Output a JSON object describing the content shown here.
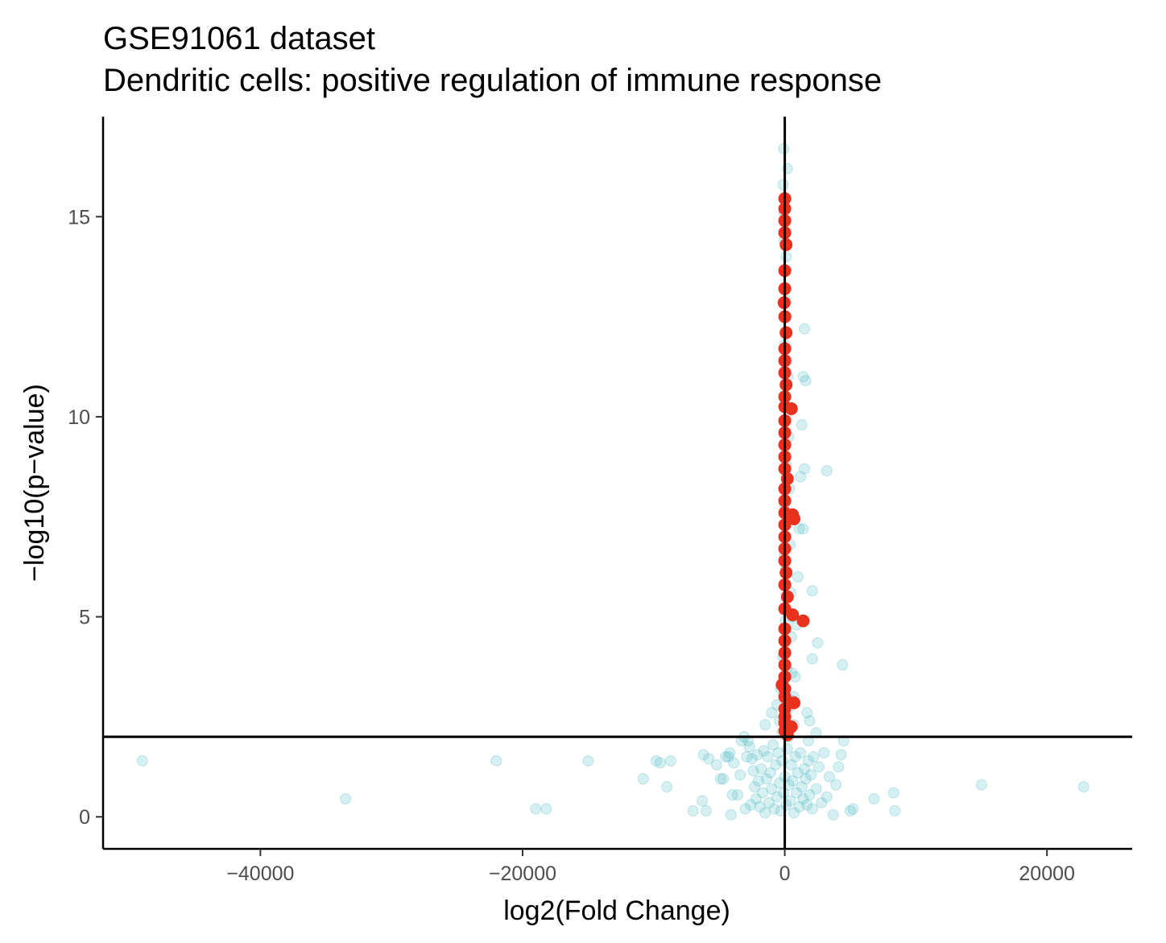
{
  "chart_data": {
    "type": "scatter",
    "title": "GSE91061 dataset",
    "subtitle": "Dendritic cells: positive regulation of immune response",
    "xlabel": "log2(Fold Change)",
    "ylabel": "−log10(p−value)",
    "xlim": [
      -52000,
      26500
    ],
    "ylim": [
      -0.8,
      17.5
    ],
    "x_ticks": [
      -40000,
      -20000,
      0,
      20000
    ],
    "x_tick_labels": [
      "−40000",
      "−20000",
      "0",
      "20000"
    ],
    "y_ticks": [
      0,
      5,
      10,
      15
    ],
    "y_tick_labels": [
      "0",
      "5",
      "10",
      "15"
    ],
    "reference_lines": {
      "vertical_x": 0,
      "horizontal_y": 2
    },
    "grid": false,
    "colors": {
      "background_points": "#5bc0c8",
      "highlight_points": "#e8321e",
      "axis": "#000000"
    },
    "series": [
      {
        "color": "#5bc0c8",
        "opacity": 0.25,
        "points": [
          [
            -49000,
            1.4
          ],
          [
            -33500,
            0.45
          ],
          [
            -22000,
            1.4
          ],
          [
            -19000,
            0.2
          ],
          [
            -18200,
            0.2
          ],
          [
            -15000,
            1.4
          ],
          [
            -10800,
            0.95
          ],
          [
            -9800,
            1.4
          ],
          [
            -9500,
            1.35
          ],
          [
            -9000,
            0.75
          ],
          [
            -8700,
            1.4
          ],
          [
            -7000,
            0.15
          ],
          [
            -6300,
            0.4
          ],
          [
            -6200,
            1.55
          ],
          [
            -6000,
            0.15
          ],
          [
            -5800,
            1.45
          ],
          [
            -5200,
            1.3
          ],
          [
            -4900,
            0.95
          ],
          [
            -4700,
            0.95
          ],
          [
            -4500,
            1.5
          ],
          [
            -4200,
            1.6
          ],
          [
            -4100,
            0.05
          ],
          [
            -4000,
            0.55
          ],
          [
            -3900,
            1.35
          ],
          [
            -3600,
            0.55
          ],
          [
            -3400,
            1.05
          ],
          [
            -3300,
            1.9
          ],
          [
            -3100,
            2.0
          ],
          [
            -3000,
            0.2
          ],
          [
            -2900,
            1.5
          ],
          [
            -2700,
            1.75
          ],
          [
            -2600,
            0.3
          ],
          [
            -2500,
            1.45
          ],
          [
            -2400,
            1.15
          ],
          [
            -2300,
            0.75
          ],
          [
            -2200,
            0.45
          ],
          [
            -2100,
            1.55
          ],
          [
            -2000,
            0.9
          ],
          [
            -1900,
            0.25
          ],
          [
            -1800,
            1.2
          ],
          [
            -1700,
            0.6
          ],
          [
            -1600,
            1.65
          ],
          [
            -1500,
            0.1
          ],
          [
            -1400,
            0.95
          ],
          [
            -1300,
            1.5
          ],
          [
            -1200,
            0.35
          ],
          [
            -1100,
            1.1
          ],
          [
            -1000,
            0.7
          ],
          [
            -900,
            1.8
          ],
          [
            -800,
            0.2
          ],
          [
            -700,
            1.3
          ],
          [
            -600,
            0.5
          ],
          [
            -500,
            1.6
          ],
          [
            -400,
            0.85
          ],
          [
            -300,
            0.15
          ],
          [
            -200,
            1.4
          ],
          [
            -100,
            0.6
          ],
          [
            0,
            1.0
          ],
          [
            100,
            0.3
          ],
          [
            200,
            1.7
          ],
          [
            300,
            0.8
          ],
          [
            400,
            0.4
          ],
          [
            500,
            1.3
          ],
          [
            600,
            0.9
          ],
          [
            700,
            0.1
          ],
          [
            800,
            1.5
          ],
          [
            900,
            0.6
          ],
          [
            1000,
            1.1
          ],
          [
            1100,
            0.25
          ],
          [
            1200,
            1.6
          ],
          [
            1300,
            0.75
          ],
          [
            1400,
            0.45
          ],
          [
            1500,
            1.2
          ],
          [
            1600,
            0.95
          ],
          [
            1700,
            0.3
          ],
          [
            1800,
            1.4
          ],
          [
            1900,
            0.55
          ],
          [
            2000,
            1.05
          ],
          [
            2100,
            0.2
          ],
          [
            2200,
            1.5
          ],
          [
            2400,
            0.7
          ],
          [
            2600,
            1.25
          ],
          [
            2800,
            0.35
          ],
          [
            3000,
            1.6
          ],
          [
            3200,
            0.5
          ],
          [
            3400,
            1.0
          ],
          [
            3700,
            0.05
          ],
          [
            3900,
            0.8
          ],
          [
            4100,
            1.25
          ],
          [
            4300,
            1.55
          ],
          [
            4500,
            1.9
          ],
          [
            5000,
            0.15
          ],
          [
            5200,
            0.2
          ],
          [
            6800,
            0.45
          ],
          [
            8300,
            0.6
          ],
          [
            8400,
            0.15
          ],
          [
            15000,
            0.8
          ],
          [
            22800,
            0.75
          ],
          [
            -4300,
            1.5
          ],
          [
            -2800,
            1.9
          ],
          [
            -1500,
            2.3
          ],
          [
            -1000,
            2.6
          ],
          [
            -600,
            2.8
          ],
          [
            -300,
            3.2
          ],
          [
            -150,
            4.0
          ],
          [
            -80,
            5.2
          ],
          [
            -40,
            6.5
          ],
          [
            -20,
            7.8
          ],
          [
            -10,
            9.0
          ],
          [
            0,
            10.5
          ],
          [
            0,
            11.8
          ],
          [
            0,
            13.2
          ],
          [
            -30,
            14.4
          ],
          [
            -50,
            15.1
          ],
          [
            -120,
            15.8
          ],
          [
            -80,
            16.7
          ],
          [
            200,
            16.2
          ],
          [
            100,
            14.0
          ],
          [
            150,
            12.5
          ],
          [
            250,
            11.0
          ],
          [
            300,
            9.5
          ],
          [
            350,
            8.2
          ],
          [
            400,
            6.8
          ],
          [
            450,
            5.6
          ],
          [
            500,
            4.5
          ],
          [
            550,
            3.6
          ],
          [
            600,
            2.9
          ],
          [
            700,
            2.3
          ],
          [
            800,
            3.5
          ],
          [
            900,
            4.8
          ],
          [
            1000,
            6.0
          ],
          [
            1100,
            7.2
          ],
          [
            1200,
            8.5
          ],
          [
            1300,
            9.8
          ],
          [
            1400,
            11.0
          ],
          [
            1500,
            12.2
          ],
          [
            1600,
            10.9
          ],
          [
            1500,
            8.7
          ],
          [
            3200,
            8.65
          ],
          [
            1400,
            7.2
          ],
          [
            2100,
            5.65
          ],
          [
            2500,
            4.35
          ],
          [
            2100,
            3.95
          ],
          [
            4400,
            3.8
          ],
          [
            1700,
            2.6
          ],
          [
            1900,
            2.4
          ],
          [
            2400,
            2.1
          ],
          [
            1800,
            1.9
          ],
          [
            600,
            5.0
          ],
          [
            700,
            3.0
          ],
          [
            300,
            2.0
          ],
          [
            -200,
            2.1
          ],
          [
            -400,
            2.4
          ],
          [
            100,
            12.9
          ],
          [
            180,
            11.4
          ],
          [
            60,
            9.9
          ],
          [
            120,
            8.8
          ],
          [
            220,
            7.5
          ],
          [
            80,
            6.2
          ],
          [
            40,
            4.9
          ],
          [
            160,
            3.7
          ],
          [
            260,
            2.7
          ],
          [
            330,
            2.2
          ]
        ]
      },
      {
        "color": "#e8321e",
        "opacity": 1,
        "points": [
          [
            0,
            15.45
          ],
          [
            0,
            15.2
          ],
          [
            0,
            14.9
          ],
          [
            0,
            14.6
          ],
          [
            100,
            14.3
          ],
          [
            0,
            13.65
          ],
          [
            0,
            13.2
          ],
          [
            -50,
            12.85
          ],
          [
            0,
            12.5
          ],
          [
            100,
            12.1
          ],
          [
            0,
            11.7
          ],
          [
            0,
            11.4
          ],
          [
            0,
            11.1
          ],
          [
            100,
            10.8
          ],
          [
            0,
            10.5
          ],
          [
            0,
            10.25
          ],
          [
            500,
            10.2
          ],
          [
            0,
            9.9
          ],
          [
            0,
            9.6
          ],
          [
            0,
            9.3
          ],
          [
            0,
            9.0
          ],
          [
            0,
            8.7
          ],
          [
            200,
            8.45
          ],
          [
            0,
            8.2
          ],
          [
            0,
            7.9
          ],
          [
            0,
            7.6
          ],
          [
            600,
            7.55
          ],
          [
            700,
            7.45
          ],
          [
            0,
            7.3
          ],
          [
            0,
            7.0
          ],
          [
            0,
            6.7
          ],
          [
            0,
            6.4
          ],
          [
            100,
            6.1
          ],
          [
            0,
            5.8
          ],
          [
            200,
            5.5
          ],
          [
            0,
            5.2
          ],
          [
            600,
            5.05
          ],
          [
            1400,
            4.9
          ],
          [
            0,
            4.7
          ],
          [
            0,
            4.4
          ],
          [
            0,
            4.1
          ],
          [
            0,
            3.8
          ],
          [
            0,
            3.5
          ],
          [
            -200,
            3.3
          ],
          [
            0,
            3.2
          ],
          [
            0,
            3.0
          ],
          [
            700,
            2.85
          ],
          [
            0,
            2.7
          ],
          [
            0,
            2.5
          ],
          [
            0,
            2.35
          ],
          [
            500,
            2.25
          ],
          [
            0,
            2.15
          ],
          [
            200,
            2.05
          ]
        ]
      }
    ]
  }
}
